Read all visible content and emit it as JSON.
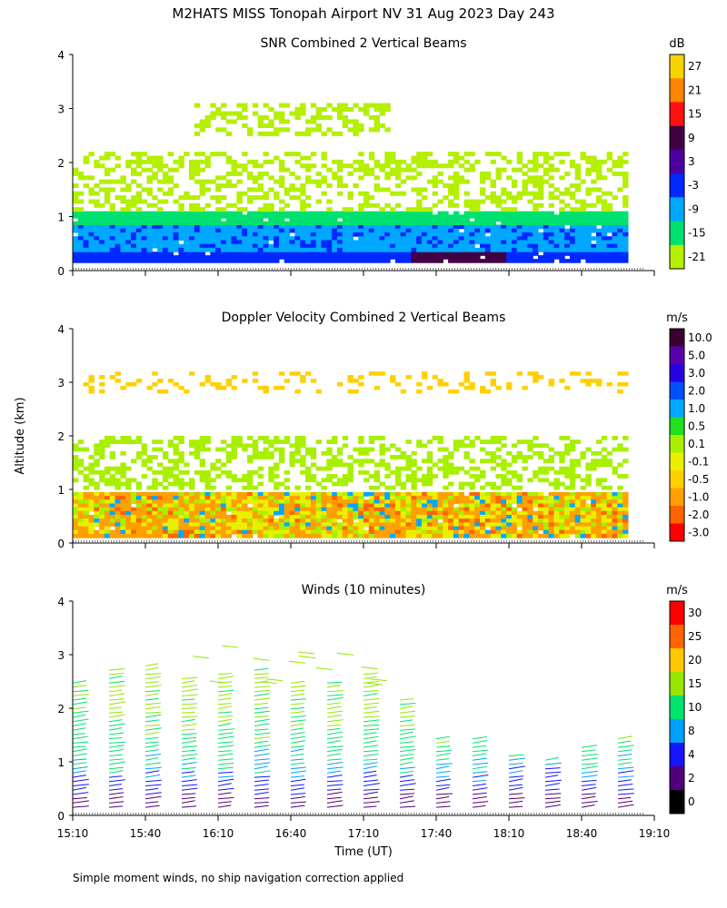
{
  "title": "M2HATS MISS Tonopah Airport NV  31 Aug 2023 Day 243",
  "footer_note": "Simple moment winds, no ship navigation correction applied",
  "shared": {
    "ylabel": "Altitude (km)",
    "xlabel": "Time (UT)",
    "ylim": [
      0,
      4
    ],
    "y_ticks": [
      "0",
      "1",
      "2",
      "3",
      "4"
    ],
    "x_ticks": [
      "15:10",
      "15:40",
      "16:10",
      "16:40",
      "17:10",
      "17:40",
      "18:10",
      "18:40",
      "19:10"
    ]
  },
  "chart_data": [
    {
      "type": "heatmap",
      "title": "SNR Combined 2 Vertical Beams",
      "colorbar_unit": "dB",
      "colorbar_labels": [
        "27",
        "21",
        "15",
        "9",
        "3",
        "-3",
        "-9",
        "-15",
        "-21"
      ],
      "colorbar_colors": [
        "#f5d500",
        "#ff8400",
        "#ff1010",
        "#420042",
        "#4c00a0",
        "#0028ff",
        "#00a8ff",
        "#00e070",
        "#b4f000"
      ],
      "xlim": [
        "15:10",
        "19:10"
      ],
      "ylim": [
        0,
        4
      ],
      "data_layers": [
        {
          "alt_from": 0.15,
          "alt_to": 0.35,
          "color": "#0028ff",
          "note": "surface strong return"
        },
        {
          "alt_from": 0.35,
          "alt_to": 0.85,
          "color": "#00a8ff"
        },
        {
          "alt_from": 0.85,
          "alt_to": 1.1,
          "color": "#00e070"
        },
        {
          "alt_from": 1.1,
          "alt_to": 2.2,
          "color": "#b4f000",
          "note": "patchy"
        },
        {
          "alt_from": 2.5,
          "alt_to": 3.1,
          "color": "#b4f000",
          "note": "patchy, 16:00-17:20"
        }
      ]
    },
    {
      "type": "heatmap",
      "title": "Doppler Velocity Combined 2 Vertical Beams",
      "colorbar_unit": "m/s",
      "colorbar_labels": [
        "10.0",
        "5.0",
        "3.0",
        "2.0",
        "1.0",
        "0.5",
        "0.1",
        "-0.1",
        "-0.5",
        "-1.0",
        "-2.0",
        "-3.0"
      ],
      "colorbar_colors": [
        "#3c0032",
        "#5a00a8",
        "#2800e0",
        "#0050ff",
        "#00a8ff",
        "#20e020",
        "#a8f000",
        "#e8f000",
        "#ffd000",
        "#ffa000",
        "#ff6400",
        "#ff0000"
      ],
      "xlim": [
        "15:10",
        "19:10"
      ],
      "ylim": [
        0,
        4
      ],
      "data_layers": [
        {
          "alt_from": 0.1,
          "alt_to": 0.95,
          "color": "#ffd000",
          "note": "mostly weak downward/upward"
        },
        {
          "alt_from": 1.0,
          "alt_to": 2.0,
          "color": "#a8f000",
          "note": "patchy"
        },
        {
          "alt_from": 2.8,
          "alt_to": 3.2,
          "color": "#ffd000",
          "note": "sparse"
        }
      ]
    },
    {
      "type": "scatter",
      "subtype": "wind-barbs",
      "title": "Winds (10 minutes)",
      "colorbar_unit": "m/s",
      "colorbar_labels": [
        "30",
        "25",
        "20",
        "15",
        "10",
        "8",
        "4",
        "2",
        "0"
      ],
      "colorbar_colors": [
        "#ff0000",
        "#ff6400",
        "#ffc800",
        "#96e600",
        "#00e46e",
        "#00a0ff",
        "#1414ff",
        "#500078",
        "#000000"
      ],
      "xlim": [
        "15:10",
        "19:10"
      ],
      "ylim": [
        0,
        4
      ],
      "profile_times": [
        "15:10",
        "15:25",
        "15:40",
        "15:55",
        "16:10",
        "16:25",
        "16:40",
        "16:55",
        "17:10",
        "17:25",
        "17:40",
        "17:55",
        "18:10",
        "18:25",
        "18:40",
        "18:55"
      ],
      "typical_speeds_ms": [
        {
          "alt_km": 0.3,
          "speed": 3
        },
        {
          "alt_km": 0.8,
          "speed": 9
        },
        {
          "alt_km": 1.4,
          "speed": 13
        },
        {
          "alt_km": 2.0,
          "speed": 16
        },
        {
          "alt_km": 2.8,
          "speed": 17
        }
      ]
    }
  ]
}
